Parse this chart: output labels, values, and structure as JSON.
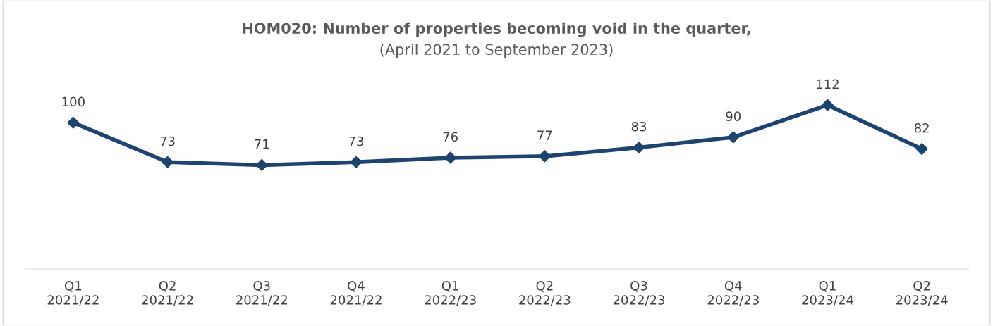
{
  "chart_data": {
    "type": "line",
    "title": "HOM020: Number of properties becoming void in the quarter,",
    "subtitle": "(April 2021 to September 2023)",
    "categories": [
      "Q1\n2021/22",
      "Q2\n2021/22",
      "Q3\n2021/22",
      "Q4\n2021/22",
      "Q1\n2022/23",
      "Q2\n2022/23",
      "Q3\n2022/23",
      "Q4\n2022/23",
      "Q1\n2023/24",
      "Q2\n2023/24"
    ],
    "series": [
      {
        "color": "#1b4570",
        "values": [
          100,
          73,
          71,
          73,
          76,
          77,
          83,
          90,
          112,
          82
        ]
      }
    ],
    "data_labels": true,
    "marker": "diamond",
    "line_style": "solid",
    "grid": false,
    "legend": false,
    "tick_labels": "x"
  }
}
